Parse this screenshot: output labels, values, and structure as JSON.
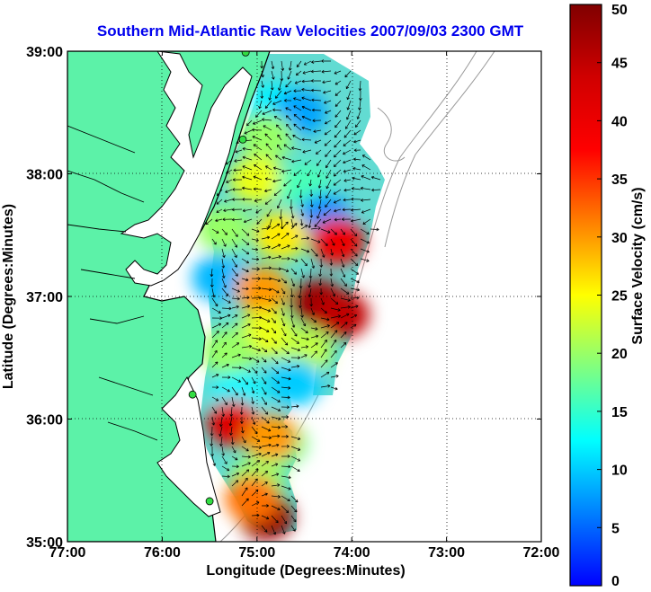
{
  "colors": {
    "land": "#5cf2a8",
    "ocean": "#ffffff",
    "title": "#0000ee",
    "station": "#33dd44",
    "arrow": "#000000"
  },
  "chart_data": {
    "type": "heatmap",
    "title": "Southern Mid-Atlantic Raw Velocities 2007/09/03 2300 GMT",
    "xlabel": "Longitude (Degrees:Minutes)",
    "ylabel": "Latitude (Degrees:Minutes)",
    "x_ticks": [
      {
        "value": -77,
        "label": "77:00"
      },
      {
        "value": -76,
        "label": "76:00"
      },
      {
        "value": -75,
        "label": "75:00"
      },
      {
        "value": -74,
        "label": "74:00"
      },
      {
        "value": -73,
        "label": "73:00"
      },
      {
        "value": -72,
        "label": "72:00"
      }
    ],
    "y_ticks": [
      {
        "value": 35,
        "label": "35:00"
      },
      {
        "value": 36,
        "label": "36:00"
      },
      {
        "value": 37,
        "label": "37:00"
      },
      {
        "value": 38,
        "label": "38:00"
      },
      {
        "value": 39,
        "label": "39:00"
      }
    ],
    "xlim": [
      -77,
      -72
    ],
    "ylim": [
      35,
      39
    ],
    "grid": true,
    "colorbar": {
      "label": "Surface Velocity (cm/s)",
      "range": [
        0,
        50
      ],
      "ticks": [
        "0",
        "5",
        "10",
        "15",
        "20",
        "25",
        "30",
        "35",
        "40",
        "45",
        "50"
      ]
    },
    "stations": [
      {
        "lon": -75.12,
        "lat": 38.99
      },
      {
        "lon": -75.15,
        "lat": 38.28
      },
      {
        "lon": -75.68,
        "lat": 36.2
      },
      {
        "lon": -75.5,
        "lat": 35.33
      }
    ],
    "velocity_zones": [
      {
        "lon": -74.8,
        "lat": 38.55,
        "speed": 12
      },
      {
        "lon": -74.55,
        "lat": 38.5,
        "speed": 8
      },
      {
        "lon": -74.9,
        "lat": 38.3,
        "speed": 20
      },
      {
        "lon": -75.0,
        "lat": 37.95,
        "speed": 24
      },
      {
        "lon": -74.5,
        "lat": 37.9,
        "speed": 16
      },
      {
        "lon": -74.3,
        "lat": 37.65,
        "speed": 7
      },
      {
        "lon": -75.35,
        "lat": 37.55,
        "speed": 20
      },
      {
        "lon": -74.75,
        "lat": 37.5,
        "speed": 26
      },
      {
        "lon": -74.15,
        "lat": 37.45,
        "speed": 40
      },
      {
        "lon": -75.4,
        "lat": 37.15,
        "speed": 9
      },
      {
        "lon": -74.95,
        "lat": 37.05,
        "speed": 30
      },
      {
        "lon": -74.35,
        "lat": 36.95,
        "speed": 48
      },
      {
        "lon": -74.1,
        "lat": 36.85,
        "speed": 45
      },
      {
        "lon": -74.9,
        "lat": 36.7,
        "speed": 24
      },
      {
        "lon": -74.5,
        "lat": 36.55,
        "speed": 22
      },
      {
        "lon": -75.3,
        "lat": 36.55,
        "speed": 20
      },
      {
        "lon": -75.2,
        "lat": 36.2,
        "speed": 12
      },
      {
        "lon": -74.6,
        "lat": 36.3,
        "speed": 10
      },
      {
        "lon": -75.25,
        "lat": 35.97,
        "speed": 42
      },
      {
        "lon": -74.75,
        "lat": 35.8,
        "speed": 18
      },
      {
        "lon": -74.85,
        "lat": 35.85,
        "speed": 30
      },
      {
        "lon": -75.0,
        "lat": 35.5,
        "speed": 20
      },
      {
        "lon": -74.9,
        "lat": 35.2,
        "speed": 48
      },
      {
        "lon": -75.05,
        "lat": 35.35,
        "speed": 32
      }
    ]
  }
}
